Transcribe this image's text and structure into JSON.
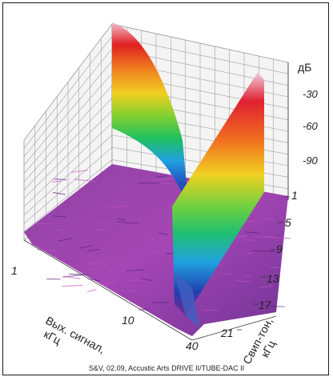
{
  "chart_data": {
    "type": "heatmap",
    "subtype": "3d-waterfall-surface",
    "title": "",
    "xlabel_lines": [
      "Вых. сигнал,",
      "кГц"
    ],
    "ylabel_lines": [
      "Свип-тон,",
      "кГц"
    ],
    "zlabel": "дБ",
    "x_ticks": [
      "1",
      "10",
      "40"
    ],
    "x_scale": "log",
    "y_ticks": [
      "1",
      "5",
      "9",
      "13",
      "17",
      "21"
    ],
    "y_range": [
      1,
      21
    ],
    "z_ticks": [
      "-30",
      "-60",
      "-90"
    ],
    "z_range": [
      -120,
      -10
    ],
    "grid": true,
    "colormap": [
      "#c03080",
      "#e02020",
      "#f08020",
      "#f0d020",
      "#80d030",
      "#20c060",
      "#20a0e0",
      "#2050c0",
      "#7030a0"
    ],
    "series": [
      {
        "name": "",
        "description_points": [
          [
            1,
            -120
          ],
          [
            5,
            -115
          ],
          [
            9,
            -112
          ],
          [
            13,
            -110
          ],
          [
            17,
            -108
          ],
          [
            21,
            -110
          ]
        ]
      }
    ],
    "ridge_curve_top_db": -15,
    "ridge_line_top_db": -30
  },
  "caption": "S&V, 02.09, Accustic Arts DRIVE II/TUBE-DAC II"
}
